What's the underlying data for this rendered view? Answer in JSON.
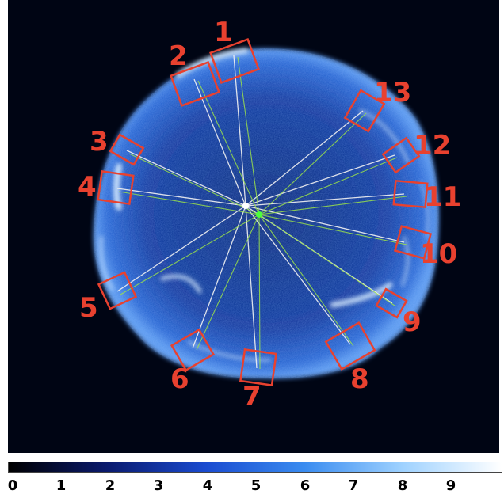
{
  "image": {
    "colors": {
      "background": "#000514",
      "remnant_glow": "#2f6fd8",
      "rim_bright": "#d8ecff",
      "box_color": "#e8412f",
      "line_white": "#f2f2f2",
      "line_green": "#9be24a",
      "center_white": "#ffffff",
      "center_green": "#4cff3a"
    },
    "region_labels": [
      "1",
      "2",
      "3",
      "4",
      "5",
      "6",
      "7",
      "8",
      "9",
      "10",
      "11",
      "12",
      "13"
    ]
  },
  "colorbar": {
    "colors": [
      "#000000",
      "#0a1a6e",
      "#1a4bd0",
      "#3a8cf0",
      "#9fd2ff",
      "#ffffff"
    ],
    "ticks": [
      "0",
      "1",
      "2",
      "3",
      "4",
      "5",
      "6",
      "7",
      "8",
      "9"
    ]
  }
}
